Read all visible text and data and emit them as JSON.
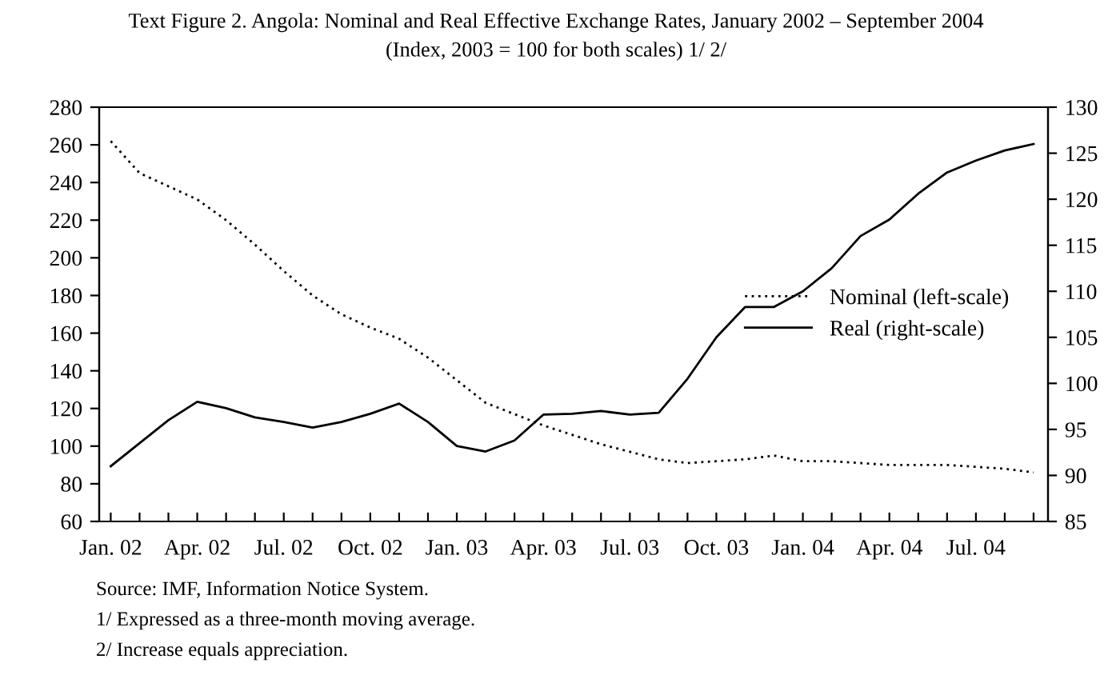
{
  "chart_data": {
    "type": "line",
    "title": "Text Figure 2. Angola: Nominal and Real Effective Exchange Rates, January 2002 – September 2004",
    "subtitle": "(Index, 2003 = 100 for both scales) 1/ 2/",
    "categories": [
      "Jan. 02",
      null,
      null,
      "Apr. 02",
      null,
      null,
      "Jul. 02",
      null,
      null,
      "Oct. 02",
      null,
      null,
      "Jan. 03",
      null,
      null,
      "Apr. 03",
      null,
      null,
      "Jul. 03",
      null,
      null,
      "Oct. 03",
      null,
      null,
      "Jan. 04",
      null,
      null,
      "Apr. 04",
      null,
      null,
      "Jul. 04",
      null,
      null
    ],
    "series": [
      {
        "name": "Nominal (left-scale)",
        "color": "#000000",
        "line_style": "dotted",
        "values": [
          262,
          245,
          238,
          231,
          220,
          207,
          193,
          180,
          170,
          163,
          157,
          147,
          135,
          123,
          117,
          111,
          106,
          101,
          97,
          93,
          91,
          92,
          93,
          95,
          92,
          92,
          91,
          90,
          90,
          90,
          89,
          88,
          86
        ]
      },
      {
        "name": "Real (right-scale)",
        "color": "#000000",
        "line_style": "solid",
        "axis": "y2",
        "values": [
          91,
          93.5,
          96,
          98,
          97.3,
          96.3,
          95.8,
          95.2,
          95.8,
          96.7,
          97.8,
          95.8,
          93.2,
          92.6,
          93.8,
          96.6,
          96.7,
          97,
          96.6,
          96.8,
          100.5,
          105,
          108.3,
          108.3,
          110,
          112.5,
          116,
          117.8,
          120.6,
          122.9,
          124.2,
          125.3,
          126
        ]
      }
    ],
    "ylim": [
      60,
      280
    ],
    "yticks": [
      60,
      80,
      100,
      120,
      140,
      160,
      180,
      200,
      220,
      240,
      260,
      280
    ],
    "y2lim": [
      85,
      130
    ],
    "y2ticks": [
      85,
      90,
      95,
      100,
      105,
      110,
      115,
      120,
      125,
      130
    ],
    "grid": false,
    "legend": "right",
    "marker": "none",
    "annotations": [
      "Source: IMF, Information Notice System.",
      "1/ Expressed as a three-month moving average.",
      "2/ Increase equals appreciation."
    ]
  }
}
